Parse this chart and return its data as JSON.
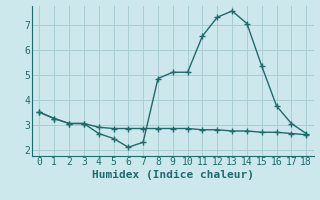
{
  "xlabel": "Humidex (Indice chaleur)",
  "background_color": "#cce8ec",
  "grid_color": "#aacdd4",
  "line_color": "#1e6b6b",
  "xlim": [
    -0.5,
    18.5
  ],
  "ylim": [
    1.75,
    7.75
  ],
  "yticks": [
    2,
    3,
    4,
    5,
    6,
    7
  ],
  "xticks": [
    0,
    1,
    2,
    3,
    4,
    5,
    6,
    7,
    8,
    9,
    10,
    11,
    12,
    13,
    14,
    15,
    16,
    17,
    18
  ],
  "line1_x": [
    0,
    1,
    2,
    3,
    4,
    5,
    6,
    7,
    8,
    9,
    10,
    11,
    12,
    13,
    14,
    15,
    16,
    17,
    18
  ],
  "line1_y": [
    3.5,
    3.25,
    3.05,
    3.05,
    2.65,
    2.45,
    2.1,
    2.3,
    4.85,
    5.1,
    5.1,
    6.55,
    7.3,
    7.55,
    7.05,
    5.35,
    3.75,
    3.05,
    2.65
  ],
  "line2_x": [
    0,
    1,
    2,
    3,
    4,
    5,
    6,
    7,
    8,
    9,
    10,
    11,
    12,
    13,
    14,
    15,
    16,
    17,
    18
  ],
  "line2_y": [
    3.5,
    3.25,
    3.05,
    3.05,
    2.9,
    2.85,
    2.85,
    2.85,
    2.85,
    2.85,
    2.85,
    2.8,
    2.8,
    2.75,
    2.75,
    2.7,
    2.7,
    2.65,
    2.6
  ],
  "tick_fontsize": 7,
  "xlabel_fontsize": 8
}
